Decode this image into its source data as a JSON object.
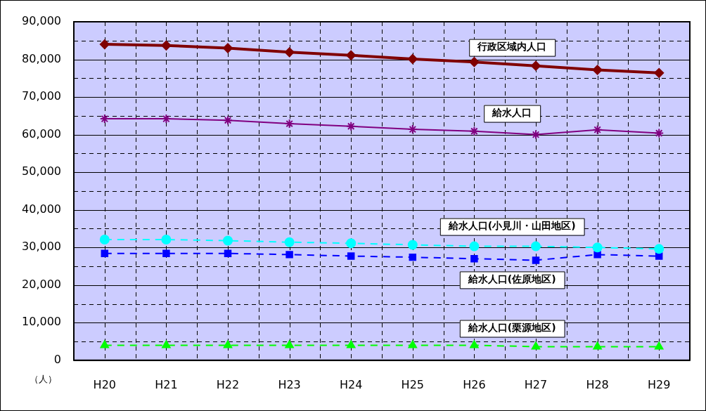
{
  "chart_data": {
    "type": "line",
    "ylabel": "（人）",
    "categories": [
      "H20",
      "H21",
      "H22",
      "H23",
      "H24",
      "H25",
      "H26",
      "H27",
      "H28",
      "H29"
    ],
    "ylim": [
      0,
      90000
    ],
    "yticks": [
      {
        "value": 0,
        "label": "0"
      },
      {
        "value": 5000,
        "label": null
      },
      {
        "value": 10000,
        "label": "10,000"
      },
      {
        "value": 15000,
        "label": null
      },
      {
        "value": 20000,
        "label": "20,000"
      },
      {
        "value": 25000,
        "label": null
      },
      {
        "value": 30000,
        "label": "30,000"
      },
      {
        "value": 35000,
        "label": null
      },
      {
        "value": 40000,
        "label": "40,000"
      },
      {
        "value": 45000,
        "label": null
      },
      {
        "value": 50000,
        "label": "50,000"
      },
      {
        "value": 55000,
        "label": null
      },
      {
        "value": 60000,
        "label": "60,000"
      },
      {
        "value": 65000,
        "label": null
      },
      {
        "value": 70000,
        "label": "70,000"
      },
      {
        "value": 75000,
        "label": null
      },
      {
        "value": 80000,
        "label": "80,000"
      },
      {
        "value": 85000,
        "label": null
      },
      {
        "value": 90000,
        "label": "90,000"
      }
    ],
    "grid": true,
    "legend": false,
    "series": [
      {
        "name": "行政区域内人口",
        "color": "#800000",
        "marker": "diamond",
        "line_style": "solid",
        "values": [
          84000,
          83700,
          83000,
          81900,
          81100,
          80100,
          79300,
          78300,
          77200,
          76400
        ]
      },
      {
        "name": "給水人口",
        "color": "#800080",
        "marker": "cross",
        "line_style": "solid",
        "values": [
          64200,
          64200,
          63800,
          62900,
          62200,
          61400,
          60900,
          60000,
          61300,
          60400
        ]
      },
      {
        "name": "給水人口(小見川・山田地区)",
        "color": "#00ffff",
        "marker": "circle",
        "line_style": "dashed",
        "values": [
          32100,
          32100,
          31800,
          31400,
          31100,
          30700,
          30300,
          30300,
          30000,
          29600
        ]
      },
      {
        "name": "給水人口(佐原地区)",
        "color": "#0000ff",
        "marker": "square",
        "line_style": "dashed",
        "values": [
          28400,
          28400,
          28400,
          28100,
          27700,
          27400,
          27000,
          26600,
          28100,
          27700
        ]
      },
      {
        "name": "給水人口(栗源地区)",
        "color": "#00ff00",
        "marker": "triangle",
        "line_style": "dashed",
        "values": [
          4000,
          4000,
          4000,
          4000,
          4000,
          4000,
          4000,
          3600,
          3600,
          3600
        ]
      }
    ]
  }
}
